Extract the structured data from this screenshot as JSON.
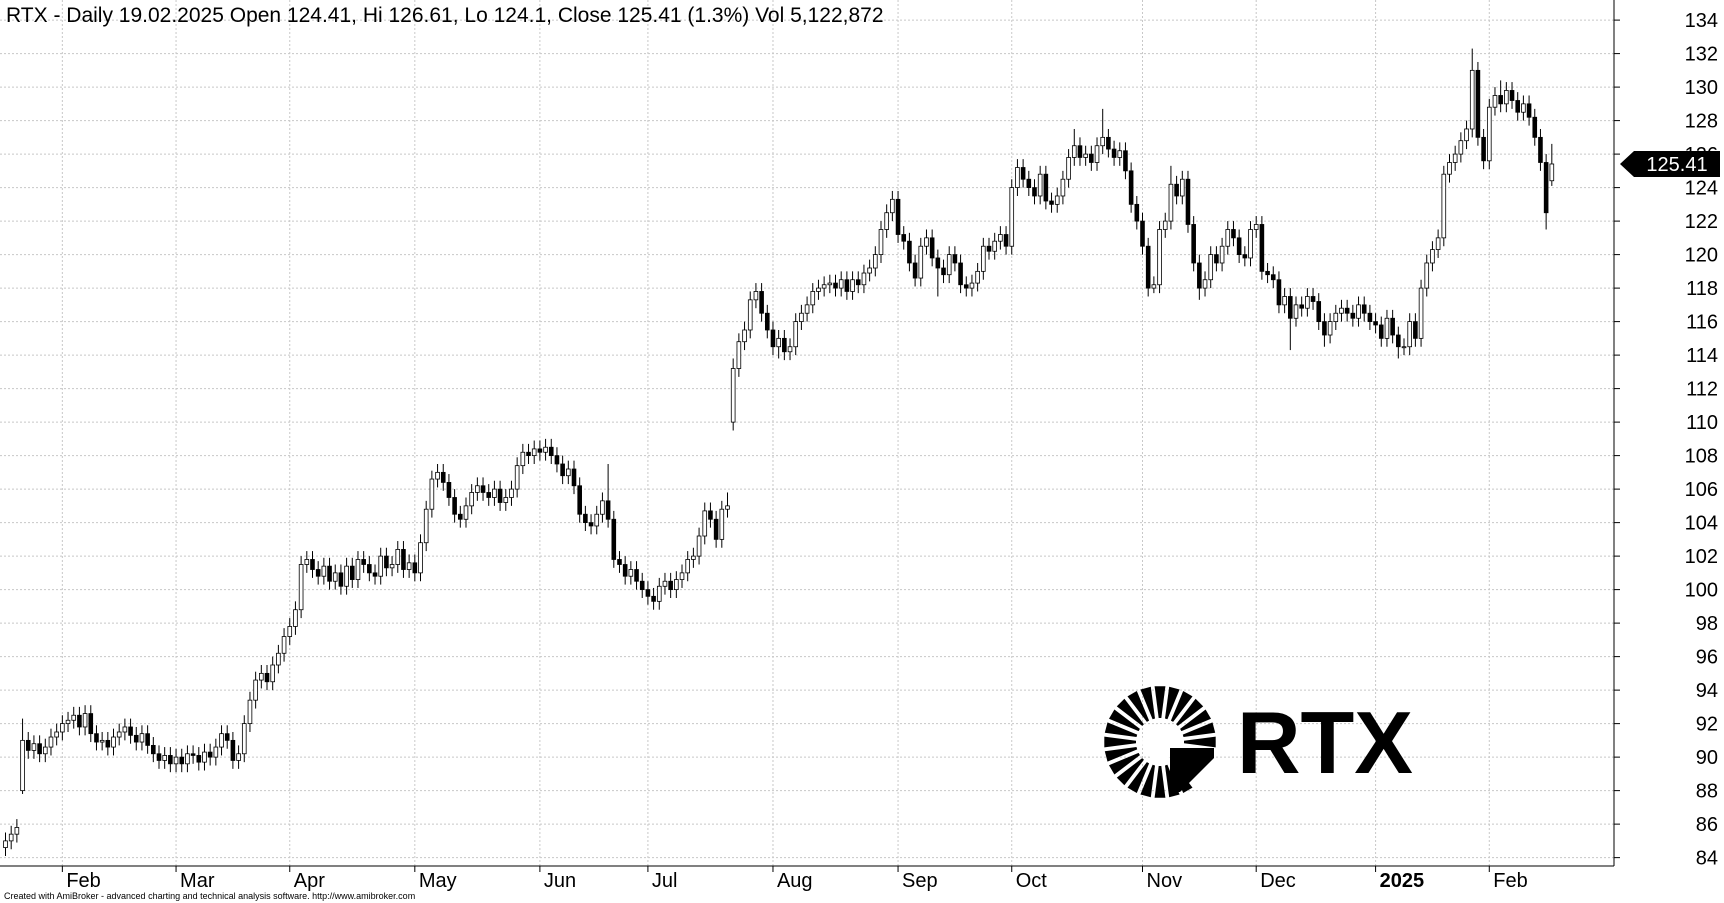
{
  "chart_data": {
    "type": "candlestick",
    "title": "RTX - Daily 19.02.2025 Open 124.41, Hi 126.61, Lo 124.1, Close 125.41 (1.3%) Vol 5,122,872",
    "watermark": "RTX",
    "footer": "Created with AmiBroker - advanced charting and technical analysis software. http://www.amibroker.com",
    "grid": true,
    "ylim": [
      83.5,
      135.2
    ],
    "yticks": [
      84,
      86,
      88,
      90,
      92,
      94,
      96,
      98,
      100,
      102,
      104,
      106,
      108,
      110,
      112,
      114,
      116,
      118,
      120,
      122,
      124,
      126,
      128,
      130,
      132,
      134
    ],
    "categories": [
      null,
      null,
      null,
      null,
      null,
      null,
      null,
      null,
      null,
      null,
      "Feb",
      null,
      null,
      null,
      null,
      null,
      null,
      null,
      null,
      null,
      null,
      null,
      null,
      null,
      null,
      null,
      null,
      null,
      null,
      null,
      "Mar",
      null,
      null,
      null,
      null,
      null,
      null,
      null,
      null,
      null,
      null,
      null,
      null,
      null,
      null,
      null,
      null,
      null,
      null,
      null,
      "Apr",
      null,
      null,
      null,
      null,
      null,
      null,
      null,
      null,
      null,
      null,
      null,
      null,
      null,
      null,
      null,
      null,
      null,
      null,
      null,
      null,
      null,
      "May",
      null,
      null,
      null,
      null,
      null,
      null,
      null,
      null,
      null,
      null,
      null,
      null,
      null,
      null,
      null,
      null,
      null,
      null,
      null,
      null,
      null,
      "Jun",
      null,
      null,
      null,
      null,
      null,
      null,
      null,
      null,
      null,
      null,
      null,
      null,
      null,
      null,
      null,
      null,
      null,
      null,
      "Jul",
      null,
      null,
      null,
      null,
      null,
      null,
      null,
      null,
      null,
      null,
      null,
      null,
      null,
      null,
      null,
      null,
      null,
      null,
      null,
      null,
      null,
      "Aug",
      null,
      null,
      null,
      null,
      null,
      null,
      null,
      null,
      null,
      null,
      null,
      null,
      null,
      null,
      null,
      null,
      null,
      null,
      null,
      null,
      null,
      "Sep",
      null,
      null,
      null,
      null,
      null,
      null,
      null,
      null,
      null,
      null,
      null,
      null,
      null,
      null,
      null,
      null,
      null,
      null,
      null,
      "Oct",
      null,
      null,
      null,
      null,
      null,
      null,
      null,
      null,
      null,
      null,
      null,
      null,
      null,
      null,
      null,
      null,
      null,
      null,
      null,
      null,
      null,
      null,
      "Nov",
      null,
      null,
      null,
      null,
      null,
      null,
      null,
      null,
      null,
      null,
      null,
      null,
      null,
      null,
      null,
      null,
      null,
      null,
      null,
      "Dec",
      null,
      null,
      null,
      null,
      null,
      null,
      null,
      null,
      null,
      null,
      null,
      null,
      null,
      null,
      null,
      null,
      null,
      null,
      null,
      null,
      "2025",
      null,
      null,
      null,
      null,
      null,
      null,
      null,
      null,
      null,
      null,
      null,
      null,
      null,
      null,
      null,
      null,
      null,
      null,
      null,
      "Feb",
      null,
      null,
      null,
      null,
      null,
      null,
      null,
      null,
      null,
      null,
      null
    ],
    "open": [
      84.6,
      85.0,
      85.4,
      88.0,
      91.0,
      90.4,
      90.8,
      90.2,
      90.6,
      91.2,
      91.5,
      92.0,
      92.2,
      92.5,
      91.8,
      92.6,
      91.4,
      90.9,
      91.0,
      90.6,
      91.2,
      91.5,
      91.8,
      91.3,
      90.9,
      91.4,
      90.7,
      90.2,
      89.8,
      90.1,
      89.6,
      90.0,
      89.6,
      90.2,
      90.1,
      89.7,
      90.3,
      90.0,
      90.6,
      91.4,
      91.0,
      89.8,
      90.2,
      92.0,
      93.4,
      94.6,
      95.0,
      94.5,
      95.5,
      96.2,
      97.2,
      97.8,
      98.8,
      101.5,
      101.8,
      101.2,
      100.8,
      101.4,
      100.5,
      101.0,
      100.2,
      101.4,
      100.6,
      101.8,
      101.5,
      101.0,
      100.8,
      102.0,
      101.3,
      101.5,
      102.4,
      101.2,
      101.6,
      101.0,
      102.8,
      104.8,
      106.6,
      107.0,
      106.4,
      105.5,
      104.5,
      104.2,
      105.0,
      105.8,
      106.2,
      105.8,
      105.5,
      106.0,
      105.2,
      105.5,
      106.0,
      107.4,
      108.2,
      108.0,
      108.4,
      108.2,
      108.5,
      108.0,
      107.5,
      106.8,
      107.2,
      106.2,
      104.5,
      104.0,
      103.8,
      104.5,
      105.3,
      104.2,
      101.8,
      101.5,
      100.8,
      101.2,
      100.5,
      100.0,
      99.6,
      99.3,
      100.2,
      100.5,
      100.0,
      100.6,
      101.0,
      101.8,
      102.0,
      103.2,
      104.7,
      104.2,
      103.0,
      104.8,
      110.0,
      113.2,
      114.8,
      115.5,
      117.3,
      117.8,
      116.5,
      115.5,
      114.5,
      115.0,
      114.2,
      114.5,
      116.0,
      116.5,
      117.0,
      117.8,
      118.0,
      118.2,
      118.3,
      118.0,
      118.5,
      117.8,
      118.5,
      118.2,
      118.9,
      119.2,
      120.0,
      121.5,
      122.5,
      123.3,
      121.2,
      120.8,
      119.5,
      118.6,
      120.5,
      121.0,
      119.8,
      119.2,
      118.8,
      120.0,
      119.5,
      118.2,
      118.0,
      118.3,
      119.0,
      120.5,
      120.2,
      120.8,
      121.2,
      120.5,
      124.0,
      125.2,
      124.5,
      124.0,
      123.5,
      124.8,
      123.2,
      123.0,
      123.5,
      124.5,
      125.8,
      126.5,
      125.8,
      126.0,
      125.5,
      126.5,
      127.0,
      126.3,
      125.8,
      126.2,
      125.0,
      123.0,
      122.0,
      120.5,
      118.0,
      118.2,
      121.5,
      122.0,
      124.2,
      123.5,
      124.5,
      121.8,
      119.5,
      118.0,
      118.5,
      120.0,
      119.5,
      120.5,
      121.5,
      121.0,
      120.0,
      119.8,
      121.5,
      121.8,
      119.0,
      118.8,
      118.5,
      117.0,
      117.5,
      116.2,
      117.0,
      116.8,
      117.5,
      117.2,
      116.0,
      115.2,
      116.0,
      116.5,
      116.8,
      116.5,
      116.2,
      117.0,
      116.5,
      116.0,
      115.8,
      115.0,
      116.2,
      115.2,
      114.5,
      114.5,
      116.0,
      115.0,
      118.0,
      119.5,
      120.3,
      121.0,
      124.8,
      125.5,
      126.0,
      126.8,
      127.5,
      131.0,
      127.0,
      125.6,
      128.8,
      129.5,
      129.0,
      129.8,
      129.2,
      128.5,
      129.0,
      128.2,
      127.0,
      125.5,
      124.41
    ],
    "high": [
      85.5,
      85.9,
      86.3,
      92.3,
      91.5,
      91.3,
      91.3,
      91.1,
      91.7,
      92.0,
      92.5,
      92.7,
      93.0,
      93.0,
      93.1,
      93.1,
      91.9,
      91.5,
      91.5,
      91.7,
      92.0,
      92.3,
      92.3,
      91.8,
      91.9,
      91.9,
      91.2,
      90.7,
      90.6,
      90.6,
      90.5,
      90.5,
      90.7,
      90.7,
      90.6,
      90.8,
      90.8,
      91.1,
      91.9,
      91.9,
      91.5,
      90.7,
      92.5,
      93.9,
      95.1,
      95.5,
      95.5,
      96.0,
      96.7,
      97.7,
      98.3,
      99.3,
      102.0,
      102.3,
      102.3,
      101.7,
      101.9,
      101.9,
      101.5,
      101.5,
      101.9,
      101.9,
      102.3,
      102.3,
      102.0,
      101.5,
      102.5,
      102.5,
      102.0,
      102.9,
      102.9,
      102.1,
      102.1,
      103.3,
      105.3,
      107.1,
      107.5,
      107.5,
      106.9,
      106.0,
      105.0,
      105.5,
      106.3,
      106.7,
      106.7,
      106.3,
      106.5,
      106.5,
      106.0,
      106.5,
      107.9,
      108.7,
      108.7,
      108.9,
      108.9,
      109.0,
      109.0,
      108.5,
      108.0,
      107.7,
      107.7,
      106.7,
      105.0,
      104.5,
      105.0,
      105.8,
      107.5,
      104.7,
      102.3,
      102.0,
      101.7,
      101.7,
      101.0,
      100.5,
      100.1,
      100.7,
      101.0,
      101.0,
      101.1,
      101.5,
      102.3,
      102.5,
      103.7,
      105.2,
      105.2,
      104.7,
      105.3,
      105.8,
      113.8,
      115.3,
      116.0,
      117.8,
      118.3,
      118.3,
      117.0,
      116.0,
      115.5,
      115.5,
      115.0,
      116.5,
      117.0,
      117.5,
      118.3,
      118.5,
      118.7,
      118.8,
      118.8,
      119.0,
      119.0,
      119.0,
      119.0,
      119.4,
      119.7,
      120.5,
      122.0,
      123.0,
      123.8,
      123.8,
      121.7,
      121.3,
      120.0,
      121.0,
      121.5,
      121.5,
      120.3,
      119.7,
      120.5,
      120.5,
      120.0,
      118.7,
      118.8,
      119.5,
      121.0,
      121.0,
      121.3,
      121.7,
      121.7,
      124.5,
      125.7,
      125.7,
      125.0,
      124.5,
      125.3,
      125.3,
      123.7,
      124.0,
      125.0,
      126.3,
      127.5,
      127.0,
      126.5,
      126.5,
      127.0,
      128.7,
      127.5,
      126.8,
      126.7,
      126.7,
      125.5,
      123.5,
      122.5,
      121.0,
      118.7,
      122.0,
      122.5,
      125.3,
      124.7,
      125.0,
      125.0,
      122.3,
      120.0,
      119.0,
      120.5,
      120.5,
      121.0,
      122.0,
      122.0,
      121.5,
      120.5,
      122.0,
      122.3,
      122.3,
      119.5,
      119.3,
      119.0,
      118.0,
      118.0,
      117.5,
      117.5,
      118.0,
      118.0,
      117.7,
      116.5,
      116.5,
      117.0,
      117.3,
      117.3,
      117.0,
      117.5,
      117.5,
      117.0,
      116.5,
      116.3,
      116.7,
      116.7,
      115.7,
      115.0,
      116.5,
      116.5,
      118.5,
      120.0,
      120.8,
      121.5,
      125.3,
      126.0,
      126.5,
      127.3,
      128.0,
      132.3,
      131.5,
      127.5,
      129.3,
      130.0,
      130.4,
      130.3,
      130.3,
      129.7,
      129.5,
      129.5,
      128.7,
      127.5,
      126.0,
      126.61
    ],
    "low": [
      84.1,
      84.5,
      84.9,
      87.8,
      89.9,
      89.9,
      89.7,
      89.7,
      90.1,
      90.7,
      91.0,
      91.5,
      91.7,
      91.3,
      91.3,
      90.9,
      90.4,
      90.4,
      90.1,
      90.1,
      90.7,
      91.0,
      90.8,
      90.4,
      90.4,
      90.2,
      89.7,
      89.3,
      89.3,
      89.1,
      89.1,
      89.1,
      89.1,
      89.6,
      89.2,
      89.2,
      89.5,
      89.5,
      90.1,
      90.5,
      89.3,
      89.3,
      89.7,
      91.5,
      92.9,
      94.1,
      94.0,
      94.0,
      95.0,
      95.7,
      96.7,
      97.3,
      98.3,
      101.0,
      100.7,
      100.3,
      100.3,
      100.0,
      100.0,
      99.7,
      99.7,
      100.1,
      100.1,
      101.0,
      100.5,
      100.3,
      100.3,
      100.8,
      100.8,
      101.0,
      100.7,
      100.7,
      100.5,
      100.5,
      102.3,
      104.3,
      106.1,
      105.9,
      105.0,
      104.0,
      103.7,
      103.7,
      104.5,
      105.3,
      105.3,
      105.0,
      105.0,
      104.7,
      104.7,
      105.0,
      105.5,
      106.9,
      107.5,
      107.5,
      107.7,
      107.7,
      107.5,
      107.0,
      106.3,
      106.3,
      105.7,
      104.0,
      103.5,
      103.3,
      103.3,
      104.0,
      103.7,
      101.3,
      101.0,
      100.3,
      100.3,
      100.0,
      99.5,
      99.1,
      98.8,
      98.8,
      99.7,
      99.5,
      99.5,
      100.1,
      100.5,
      101.3,
      101.5,
      102.7,
      103.7,
      102.5,
      102.5,
      104.3,
      109.5,
      112.7,
      114.3,
      115.0,
      116.8,
      116.0,
      115.0,
      114.0,
      113.8,
      113.7,
      113.7,
      114.0,
      115.5,
      116.0,
      116.5,
      117.3,
      117.5,
      117.7,
      117.5,
      117.5,
      117.3,
      117.3,
      117.7,
      117.7,
      118.4,
      118.7,
      119.5,
      121.0,
      122.0,
      120.7,
      120.3,
      119.0,
      118.1,
      118.1,
      120.0,
      119.3,
      117.5,
      118.3,
      118.3,
      119.0,
      117.7,
      117.5,
      117.5,
      117.8,
      118.5,
      119.7,
      119.7,
      120.3,
      120.0,
      120.0,
      123.5,
      124.0,
      123.5,
      123.0,
      123.0,
      122.7,
      122.5,
      122.5,
      123.0,
      124.0,
      125.3,
      125.3,
      125.3,
      125.0,
      125.0,
      126.0,
      125.8,
      125.3,
      125.3,
      124.5,
      122.5,
      121.5,
      120.0,
      117.5,
      117.7,
      117.7,
      121.0,
      121.5,
      123.0,
      123.0,
      121.3,
      119.0,
      117.3,
      117.5,
      118.0,
      119.0,
      119.0,
      120.0,
      120.5,
      119.5,
      119.3,
      119.3,
      121.0,
      118.5,
      118.3,
      118.0,
      116.5,
      116.5,
      114.3,
      115.7,
      116.3,
      116.3,
      116.7,
      115.5,
      114.5,
      114.7,
      115.5,
      116.0,
      116.0,
      115.7,
      115.7,
      116.0,
      115.5,
      115.3,
      114.5,
      114.5,
      114.7,
      113.8,
      114.0,
      114.0,
      114.5,
      114.5,
      117.5,
      119.0,
      119.8,
      120.5,
      124.3,
      125.0,
      125.5,
      126.3,
      127.0,
      126.5,
      125.1,
      125.1,
      128.3,
      128.5,
      128.5,
      128.7,
      128.0,
      128.0,
      127.7,
      126.5,
      125.0,
      121.5,
      124.1
    ],
    "close": [
      85.0,
      85.4,
      85.8,
      91.0,
      90.4,
      90.8,
      90.2,
      90.6,
      91.2,
      91.5,
      92.0,
      92.2,
      92.5,
      91.8,
      92.6,
      91.4,
      90.9,
      91.0,
      90.6,
      91.2,
      91.5,
      91.8,
      91.3,
      90.9,
      91.4,
      90.7,
      90.2,
      89.8,
      90.1,
      89.6,
      90.0,
      89.6,
      90.2,
      90.1,
      89.7,
      90.3,
      90.0,
      90.6,
      91.4,
      91.0,
      89.8,
      90.2,
      92.0,
      93.4,
      94.6,
      95.0,
      94.5,
      95.5,
      96.2,
      97.2,
      97.8,
      98.8,
      101.5,
      101.8,
      101.2,
      100.8,
      101.4,
      100.5,
      101.0,
      100.2,
      101.4,
      100.6,
      101.8,
      101.5,
      101.0,
      100.8,
      102.0,
      101.3,
      101.5,
      102.4,
      101.2,
      101.6,
      101.0,
      102.8,
      104.8,
      106.6,
      107.0,
      106.4,
      105.5,
      104.5,
      104.2,
      105.0,
      105.8,
      106.2,
      105.8,
      105.5,
      106.0,
      105.2,
      105.5,
      106.0,
      107.4,
      108.2,
      108.0,
      108.4,
      108.2,
      108.5,
      108.0,
      107.5,
      106.8,
      107.2,
      106.2,
      104.5,
      104.0,
      103.8,
      104.5,
      105.3,
      104.2,
      101.8,
      101.5,
      100.8,
      101.2,
      100.5,
      100.0,
      99.6,
      99.3,
      100.2,
      100.5,
      100.0,
      100.6,
      101.0,
      101.8,
      102.0,
      103.2,
      104.7,
      104.2,
      103.0,
      104.8,
      105.0,
      113.2,
      114.8,
      115.5,
      117.3,
      117.8,
      116.5,
      115.5,
      114.5,
      115.0,
      114.2,
      114.5,
      116.0,
      116.5,
      117.0,
      117.8,
      118.0,
      118.2,
      118.3,
      118.0,
      118.5,
      117.8,
      118.5,
      118.2,
      118.9,
      119.2,
      120.0,
      121.5,
      122.5,
      123.3,
      121.2,
      120.8,
      119.5,
      118.6,
      120.5,
      121.0,
      119.8,
      119.2,
      118.8,
      120.0,
      119.5,
      118.2,
      118.0,
      118.3,
      119.0,
      120.5,
      120.2,
      120.8,
      121.2,
      120.5,
      124.0,
      125.2,
      124.5,
      124.0,
      123.5,
      124.8,
      123.2,
      123.0,
      123.5,
      124.5,
      125.8,
      126.5,
      125.8,
      126.0,
      125.5,
      126.5,
      127.0,
      126.3,
      125.8,
      126.2,
      125.0,
      123.0,
      122.0,
      120.5,
      118.0,
      118.2,
      121.5,
      122.0,
      124.2,
      123.5,
      124.5,
      121.8,
      119.5,
      118.0,
      118.5,
      120.0,
      119.5,
      120.5,
      121.5,
      121.0,
      120.0,
      119.8,
      121.5,
      121.8,
      119.0,
      118.8,
      118.5,
      117.0,
      117.5,
      116.2,
      117.0,
      116.8,
      117.5,
      117.2,
      116.0,
      115.2,
      116.0,
      116.5,
      116.8,
      116.5,
      116.2,
      117.0,
      116.5,
      116.0,
      115.8,
      115.0,
      116.2,
      115.2,
      114.5,
      114.5,
      116.0,
      115.0,
      118.0,
      119.5,
      120.3,
      121.0,
      124.8,
      125.5,
      126.0,
      126.8,
      127.5,
      131.0,
      127.0,
      125.6,
      128.8,
      129.5,
      129.0,
      129.8,
      129.2,
      128.5,
      129.0,
      128.2,
      127.0,
      125.5,
      122.5,
      125.41
    ]
  }
}
